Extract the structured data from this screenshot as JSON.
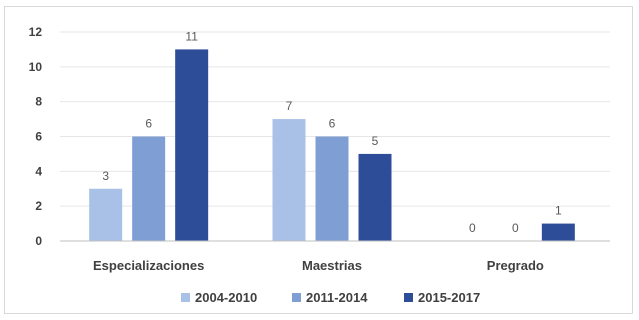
{
  "chart_data": {
    "type": "bar",
    "title": "",
    "xlabel": "",
    "ylabel": "",
    "categories": [
      "Especializaciones",
      "Maestrias",
      "Pregrado"
    ],
    "series": [
      {
        "name": "2004-2010",
        "values": [
          3,
          7,
          0
        ],
        "labels": [
          "3",
          "7",
          "0"
        ],
        "color": "#a9c1e6"
      },
      {
        "name": "2011-2014",
        "values": [
          6,
          6,
          0
        ],
        "labels": [
          "6",
          "6",
          "0"
        ],
        "color": "#7f9fd4"
      },
      {
        "name": "2015-2017",
        "values": [
          11,
          5,
          1
        ],
        "labels": [
          "11",
          "5",
          "1"
        ],
        "color": "#2e4d99"
      }
    ],
    "ylim": [
      0,
      12
    ],
    "yticks": [
      "0",
      "2",
      "4",
      "6",
      "8",
      "10",
      "12"
    ],
    "grid": true,
    "legend": "bottom"
  }
}
